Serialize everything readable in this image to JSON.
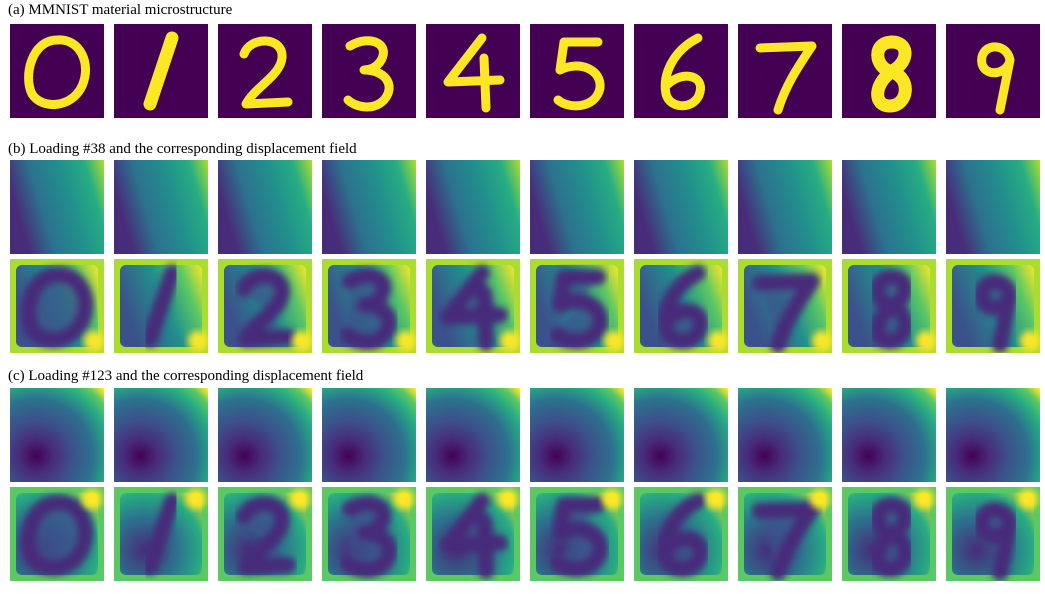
{
  "figure": {
    "panels": [
      {
        "id": "a",
        "title": "(a) MMNIST material microstructure",
        "rows": [
          "digits"
        ]
      },
      {
        "id": "b",
        "title": "(b) Loading #38 and the corresponding displacement field",
        "rows": [
          "loading-38",
          "displacement-38"
        ]
      },
      {
        "id": "c",
        "title": "(c) Loading #123 and the corresponding displacement field",
        "rows": [
          "loading-123",
          "displacement-123"
        ]
      }
    ],
    "digits": [
      "0",
      "1",
      "2",
      "3",
      "4",
      "5",
      "6",
      "7",
      "8",
      "9"
    ],
    "colormap": {
      "name": "viridis",
      "stops": [
        "#440154",
        "#472c7a",
        "#3b518b",
        "#2c718e",
        "#21908d",
        "#27ad81",
        "#5cc863",
        "#aadc32",
        "#fde725"
      ]
    }
  }
}
